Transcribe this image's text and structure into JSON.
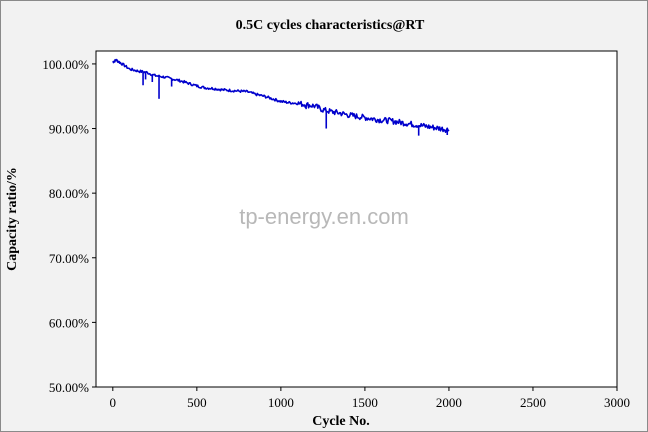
{
  "chart_data": {
    "type": "line",
    "title": "0.5C cycles characteristics@RT",
    "xlabel": "Cycle No.",
    "ylabel": "Capacity ratio/%",
    "xlim": [
      -100,
      3000
    ],
    "ylim": [
      50,
      102
    ],
    "xticks": [
      0,
      500,
      1000,
      1500,
      2000,
      2500,
      3000
    ],
    "yticks": [
      50,
      60,
      70,
      80,
      90,
      100
    ],
    "ytick_labels": [
      "50.00%",
      "60.00%",
      "70.00%",
      "80.00%",
      "90.00%",
      "100.00%"
    ],
    "grid": false,
    "legend": "none",
    "watermark": "tp-energy.en.com",
    "series": [
      {
        "color": "#0000cc",
        "x": [
          0,
          20,
          50,
          100,
          150,
          200,
          250,
          300,
          350,
          400,
          450,
          500,
          550,
          600,
          650,
          700,
          750,
          800,
          850,
          900,
          950,
          1000,
          1050,
          1100,
          1150,
          1200,
          1250,
          1300,
          1350,
          1400,
          1450,
          1500,
          1550,
          1600,
          1650,
          1700,
          1750,
          1800,
          1850,
          1900,
          1950,
          2000
        ],
        "y": [
          100.3,
          100.6,
          100.1,
          99.2,
          98.9,
          98.7,
          98.2,
          98.0,
          97.7,
          97.4,
          97.0,
          96.6,
          96.3,
          96.2,
          96.0,
          95.9,
          95.8,
          95.7,
          95.3,
          95.0,
          94.6,
          94.2,
          94.0,
          93.9,
          93.7,
          93.5,
          92.9,
          92.6,
          92.4,
          92.1,
          91.9,
          91.7,
          91.5,
          91.3,
          91.2,
          91.0,
          90.8,
          90.6,
          90.4,
          90.2,
          90.0,
          89.8
        ],
        "dips": [
          {
            "x": 180,
            "y": 96.7
          },
          {
            "x": 195,
            "y": 97.6
          },
          {
            "x": 235,
            "y": 97.2
          },
          {
            "x": 275,
            "y": 94.6
          },
          {
            "x": 350,
            "y": 96.5
          },
          {
            "x": 1150,
            "y": 93.0
          },
          {
            "x": 1270,
            "y": 90.0
          },
          {
            "x": 1820,
            "y": 88.9
          },
          {
            "x": 1990,
            "y": 89.0
          }
        ]
      }
    ]
  }
}
